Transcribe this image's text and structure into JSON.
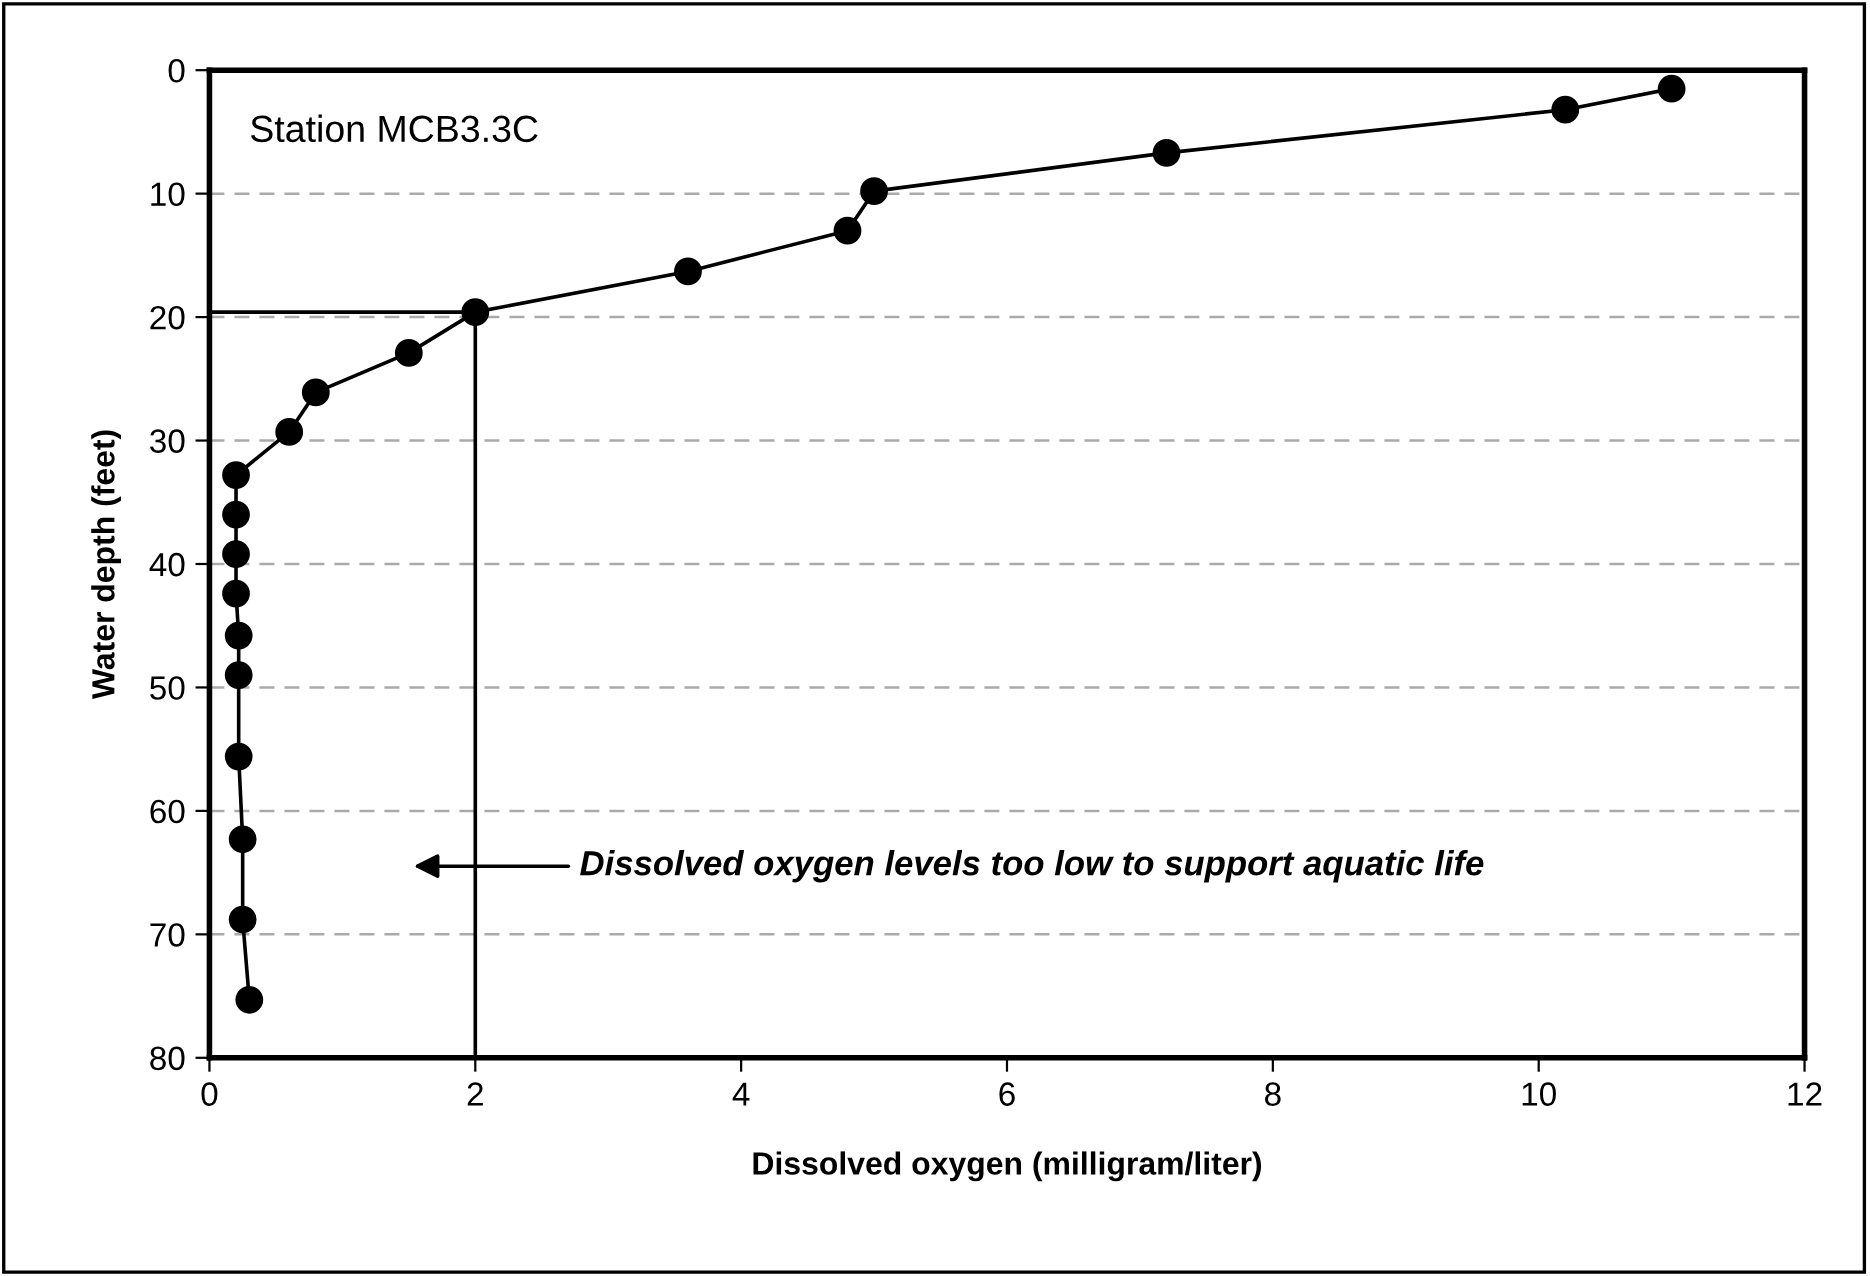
{
  "chart_data": {
    "type": "line",
    "xlabel": "Dissolved oxygen (milligram/liter)",
    "ylabel": "Water depth (feet)",
    "x": [
      11.0,
      10.2,
      7.2,
      5.0,
      4.8,
      3.6,
      2.0,
      1.5,
      0.8,
      0.6,
      0.2,
      0.2,
      0.2,
      0.2,
      0.22,
      0.22,
      0.22,
      0.25,
      0.25,
      0.3
    ],
    "series": [
      {
        "color": "#000000",
        "values": [
          1.5,
          3.2,
          6.7,
          9.8,
          13.0,
          16.3,
          19.6,
          22.9,
          26.1,
          29.3,
          32.8,
          36.0,
          39.2,
          42.4,
          45.8,
          49.0,
          55.6,
          62.3,
          68.8,
          75.3
        ]
      }
    ],
    "xlim": [
      0,
      12
    ],
    "xticks": [
      0,
      2,
      4,
      6,
      8,
      10,
      12
    ],
    "ylim": [
      80,
      0
    ],
    "yticks": [
      0,
      10,
      20,
      30,
      40,
      50,
      60,
      70,
      80
    ],
    "grid": "y",
    "marker": "circle",
    "line_style": "solid",
    "legend": false,
    "ref_lines": [
      {
        "axis": "x",
        "value": 2,
        "color": "#000000"
      },
      {
        "axis": "y",
        "value": 19.6,
        "color": "#000000"
      }
    ],
    "annotations": [
      "Station MCB3.3C",
      "Dissolved oxygen levels too low to support aquatic life"
    ]
  }
}
